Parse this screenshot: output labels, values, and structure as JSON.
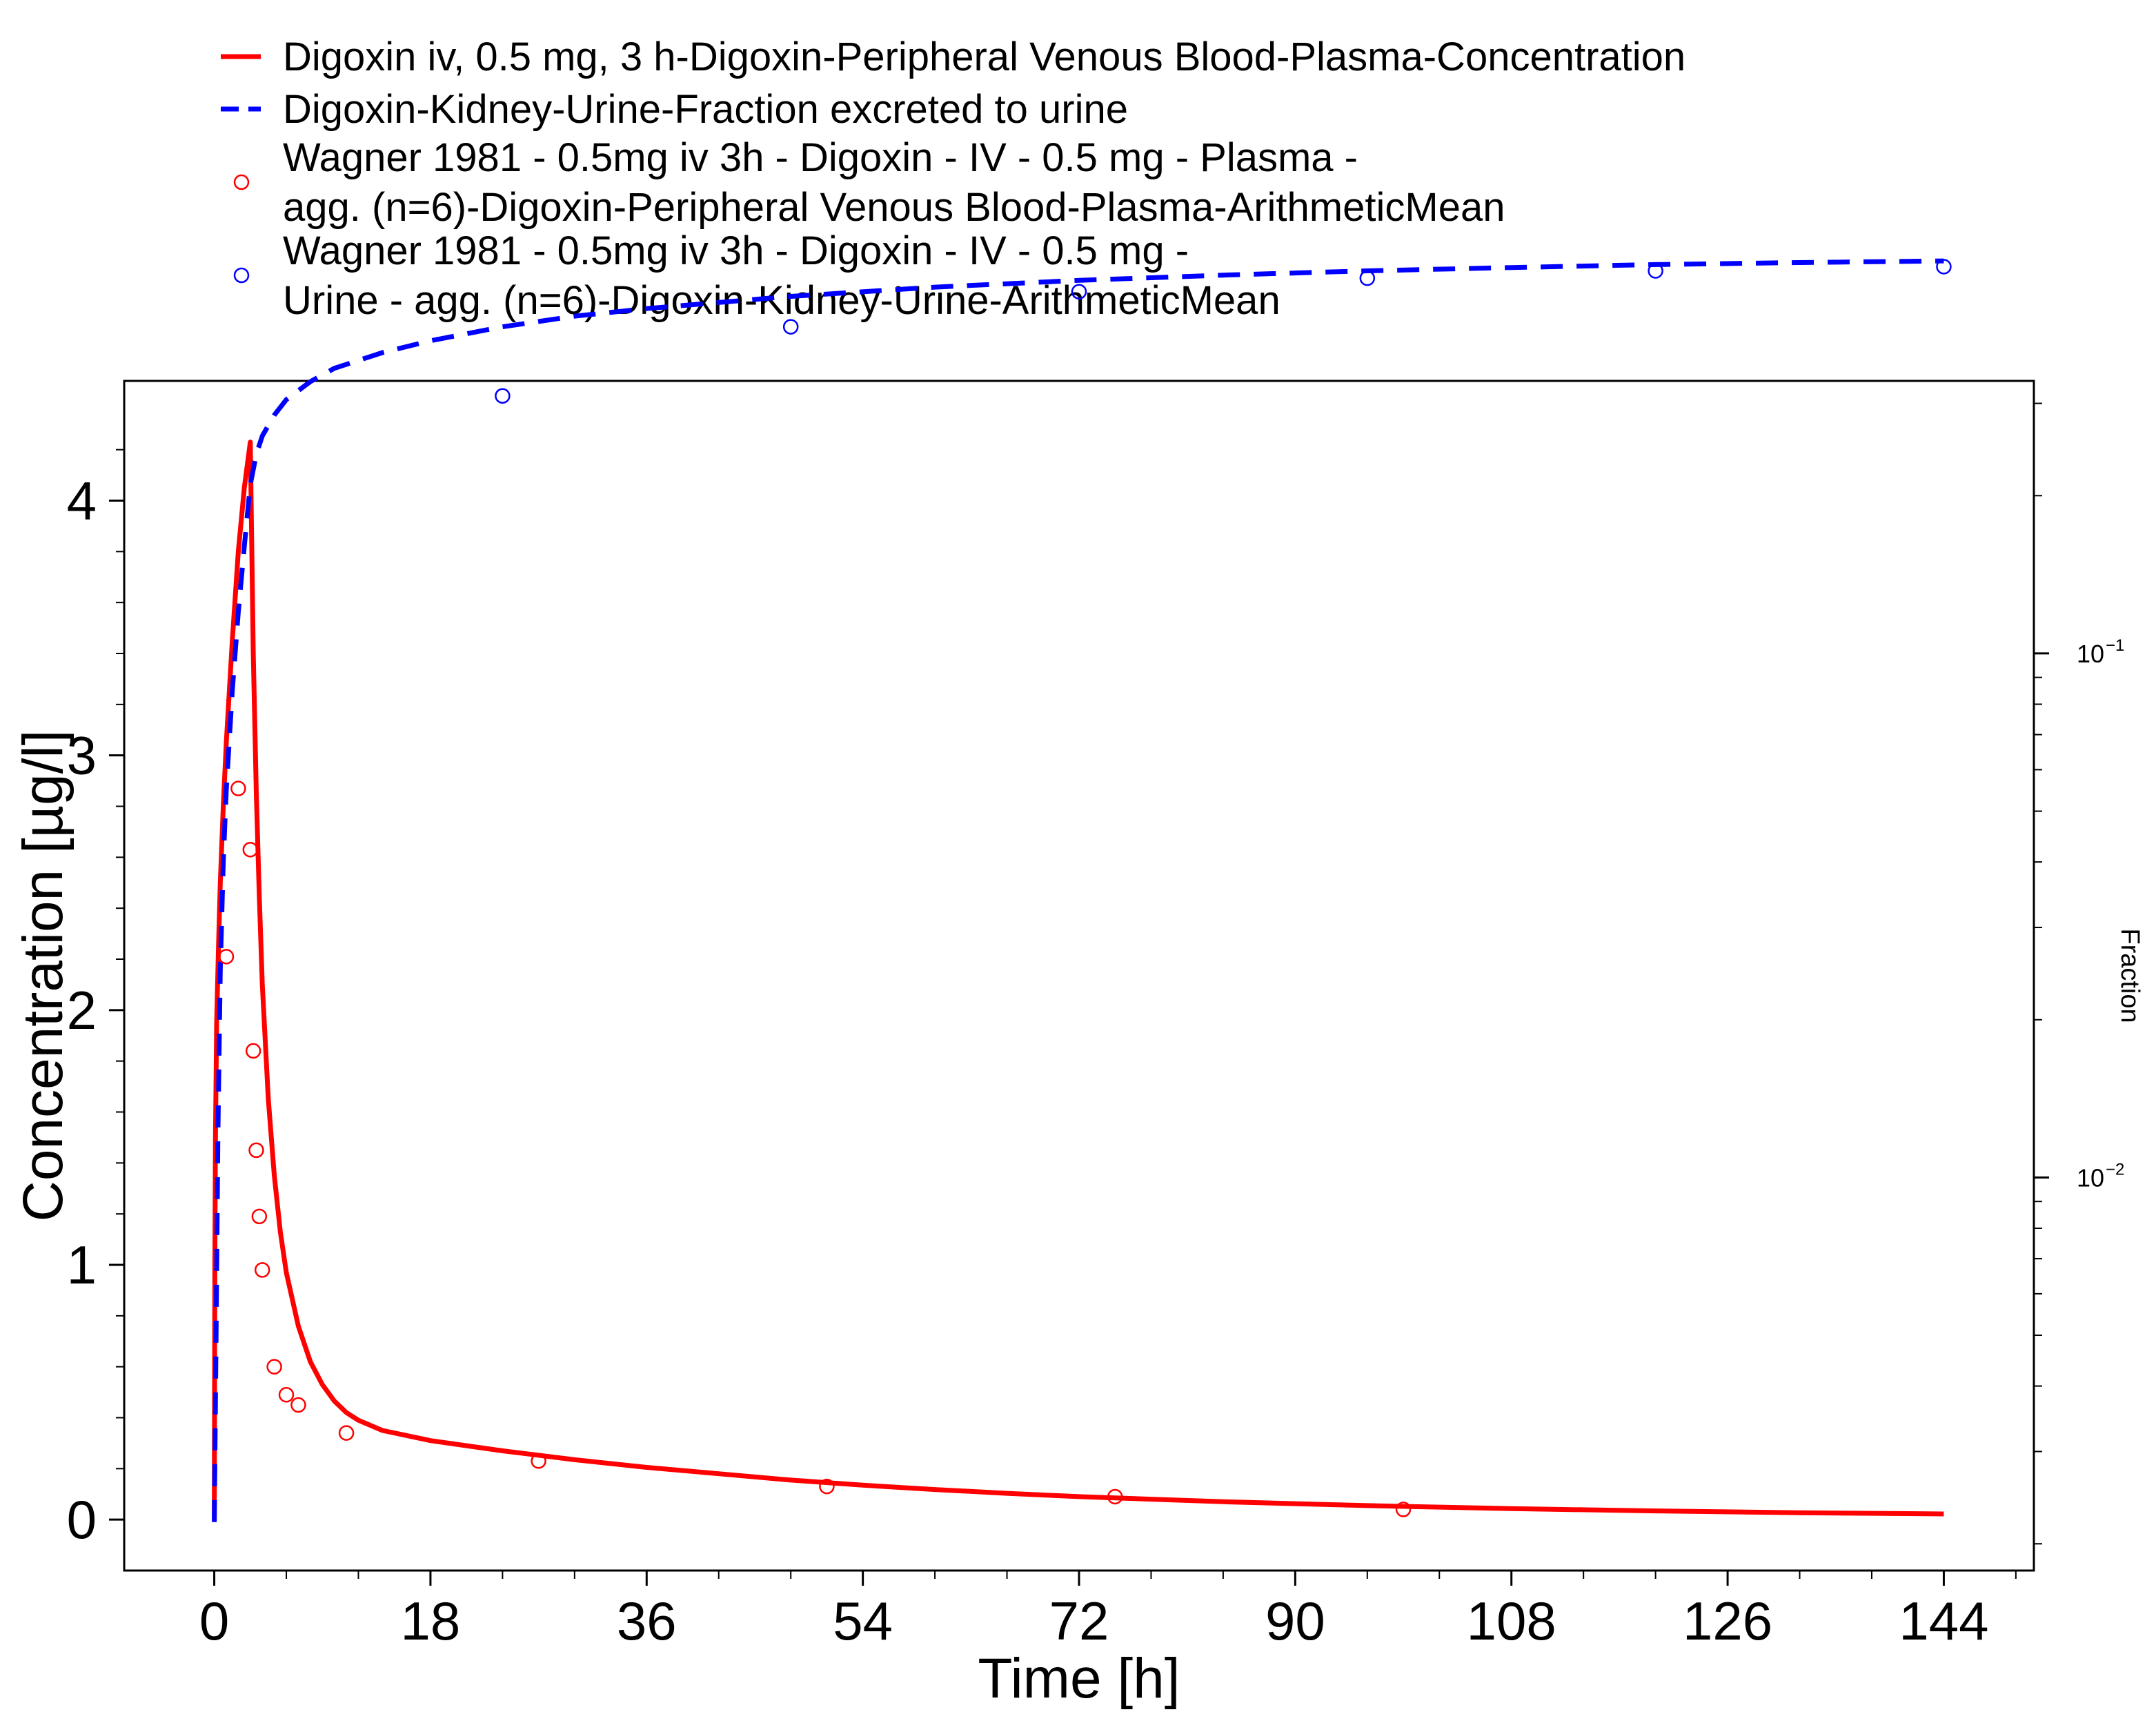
{
  "chart_data": {
    "type": "line",
    "xlabel": "Time [h]",
    "ylabel": "Concentration [µg/l]",
    "y2label": "Fraction",
    "xlim": [
      -7.5,
      151.5
    ],
    "ylim": [
      -0.2,
      4.47
    ],
    "y2lim_log10": [
      -2.75,
      -0.48
    ],
    "y2scale": "log",
    "x_ticks": [
      "0",
      "18",
      "36",
      "54",
      "72",
      "90",
      "108",
      "126",
      "144"
    ],
    "x_tick_values": [
      0,
      18,
      36,
      54,
      72,
      90,
      108,
      126,
      144
    ],
    "y_ticks": [
      "0",
      "1",
      "2",
      "3",
      "4"
    ],
    "y_tick_values": [
      0,
      1,
      2,
      3,
      4
    ],
    "y2_ticks": [
      {
        "base": "10",
        "exp": "−1",
        "value": 0.1
      },
      {
        "base": "10",
        "exp": "−2",
        "value": 0.01
      }
    ],
    "legend_position": "top",
    "legend": [
      {
        "lines": [
          "Digoxin iv, 0.5 mg, 3 h-Digoxin-Peripheral Venous Blood-Plasma-Concentration"
        ],
        "style": "solid",
        "color": "#ff0000"
      },
      {
        "lines": [
          "Digoxin-Kidney-Urine-Fraction excreted to urine"
        ],
        "style": "dashed",
        "color": "#0000ff"
      },
      {
        "lines": [
          "Wagner 1981 - 0.5mg iv 3h - Digoxin - IV - 0.5 mg - Plasma -",
          "agg. (n=6)-Digoxin-Peripheral Venous Blood-Plasma-ArithmeticMean"
        ],
        "style": "circle",
        "color": "#ff0000"
      },
      {
        "lines": [
          "Wagner 1981 - 0.5mg iv 3h - Digoxin - IV - 0.5 mg -",
          "Urine - agg. (n=6)-Digoxin-Kidney-Urine-ArithmeticMean"
        ],
        "style": "circle",
        "color": "#0000ff"
      }
    ],
    "series": [
      {
        "name": "Digoxin iv, 0.5 mg, 3 h-Digoxin-Peripheral Venous Blood-Plasma-Concentration",
        "kind": "line",
        "axis": "left",
        "color": "#ff0000",
        "x": [
          0,
          0.05,
          0.1,
          0.2,
          0.35,
          0.5,
          0.75,
          1.0,
          1.5,
          2.0,
          2.5,
          3.0,
          3.1,
          3.25,
          3.5,
          3.75,
          4.0,
          4.5,
          5.0,
          5.5,
          6.0,
          7.0,
          8.0,
          9.0,
          10.0,
          11.0,
          12.0,
          14.0,
          16.0,
          18.0,
          21.0,
          24.0,
          30.0,
          36.0,
          42.0,
          48.0,
          54.0,
          60.0,
          66.0,
          72.0,
          84.0,
          96.0,
          108.0,
          120.0,
          132.0,
          144.0
        ],
        "y": [
          0,
          1.0,
          1.5,
          1.95,
          2.25,
          2.5,
          2.8,
          3.05,
          3.45,
          3.8,
          4.05,
          4.23,
          3.9,
          3.4,
          2.85,
          2.45,
          2.1,
          1.65,
          1.35,
          1.13,
          0.97,
          0.76,
          0.62,
          0.53,
          0.465,
          0.42,
          0.39,
          0.35,
          0.33,
          0.31,
          0.29,
          0.27,
          0.235,
          0.205,
          0.18,
          0.155,
          0.135,
          0.118,
          0.103,
          0.09,
          0.07,
          0.055,
          0.043,
          0.034,
          0.027,
          0.022
        ]
      },
      {
        "name": "Digoxin-Kidney-Urine-Fraction excreted to urine",
        "kind": "dashed-line",
        "axis": "right",
        "color": "#0000ff",
        "x": [
          0,
          0.15,
          0.3,
          0.5,
          0.75,
          1.0,
          1.5,
          2.0,
          2.5,
          3.0,
          3.5,
          4.0,
          5.0,
          6.0,
          8.0,
          10.0,
          14.0,
          18.0,
          24.0,
          30.0,
          36.0,
          48.0,
          60.0,
          72.0,
          84.0,
          96.0,
          108.0,
          120.0,
          132.0,
          144.0
        ],
        "y": [
          0.0022,
          0.005,
          0.012,
          0.025,
          0.04,
          0.055,
          0.085,
          0.12,
          0.16,
          0.21,
          0.24,
          0.26,
          0.285,
          0.305,
          0.33,
          0.35,
          0.375,
          0.395,
          0.42,
          0.44,
          0.455,
          0.48,
          0.5,
          0.515,
          0.527,
          0.537,
          0.545,
          0.552,
          0.557,
          0.561
        ]
      },
      {
        "name": "Wagner 1981 - 0.5mg iv 3h - Digoxin - IV - 0.5 mg - Plasma - agg. (n=6)-Digoxin-Peripheral Venous Blood-Plasma-ArithmeticMean",
        "kind": "points",
        "axis": "left",
        "color": "#ff0000",
        "x": [
          1.0,
          2.0,
          3.0,
          3.25,
          3.5,
          3.75,
          4.0,
          5.0,
          6.0,
          7.0,
          11.0,
          27.0,
          51.0,
          75.0,
          99.0
        ],
        "y": [
          2.21,
          2.87,
          2.63,
          1.84,
          1.45,
          1.19,
          0.98,
          0.6,
          0.49,
          0.45,
          0.34,
          0.23,
          0.13,
          0.09,
          0.04
        ]
      },
      {
        "name": "Wagner 1981 - 0.5mg iv 3h - Digoxin - IV - 0.5 mg - Urine - agg. (n=6)-Digoxin-Kidney-Urine-ArithmeticMean",
        "kind": "points",
        "axis": "right",
        "color": "#0000ff",
        "x": [
          24.0,
          48.0,
          72.0,
          96.0,
          120.0,
          144.0
        ],
        "y": [
          0.31,
          0.42,
          0.49,
          0.52,
          0.537,
          0.547
        ]
      }
    ]
  }
}
